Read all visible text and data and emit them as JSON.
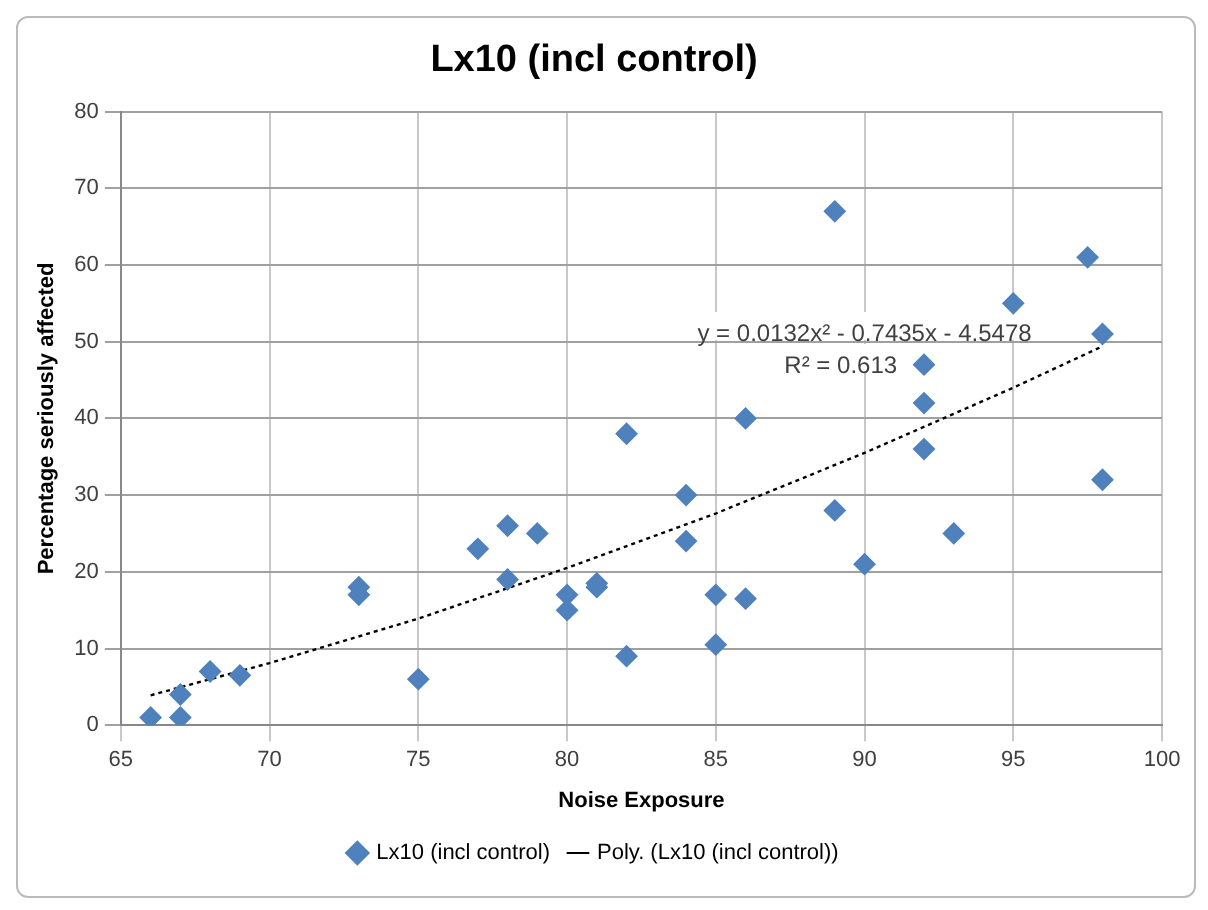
{
  "chart_data": {
    "type": "scatter",
    "title": "Lx10 (incl control)",
    "xlabel": "Noise Exposure",
    "ylabel": "Percentage seriously affected",
    "xlim": [
      65,
      100
    ],
    "xticks": [
      65,
      70,
      75,
      80,
      85,
      90,
      95,
      100
    ],
    "ylim": [
      0,
      80
    ],
    "yticks": [
      0,
      10,
      20,
      30,
      40,
      50,
      60,
      70,
      80
    ],
    "grid": true,
    "legend": "bottom",
    "series": [
      {
        "name": "Lx10 (incl control)",
        "color": "#4f81bd",
        "marker": "diamond",
        "x": [
          66,
          67,
          67,
          68,
          69,
          73,
          73,
          75,
          77,
          78,
          78,
          79,
          80,
          80,
          81,
          81,
          82,
          82,
          84,
          84,
          85,
          85,
          86,
          86,
          89,
          89,
          90,
          92,
          92,
          92,
          93,
          95,
          97.5,
          98,
          98
        ],
        "values": [
          1,
          4,
          1,
          7,
          6.5,
          18,
          17,
          6,
          23,
          26,
          19,
          25,
          17,
          15,
          18.5,
          18,
          38,
          9,
          30,
          24,
          17,
          10.5,
          40,
          16.5,
          67,
          28,
          21,
          47,
          42,
          36,
          25,
          55,
          61,
          51,
          32
        ]
      },
      {
        "name": "Poly. (Lx10 (incl control))",
        "type": "line",
        "color": "#000000",
        "line_style": "dotted",
        "marker": "none",
        "x": [
          66,
          70,
          75,
          80,
          85,
          90,
          95,
          98
        ],
        "values": [
          3.9,
          8.1,
          13.9,
          20.5,
          27.6,
          35.5,
          44,
          49.4
        ]
      }
    ],
    "annotations": [
      "y = 0.0132x² - 0.7435x - 4.5478",
      "R² = 0.613"
    ]
  }
}
